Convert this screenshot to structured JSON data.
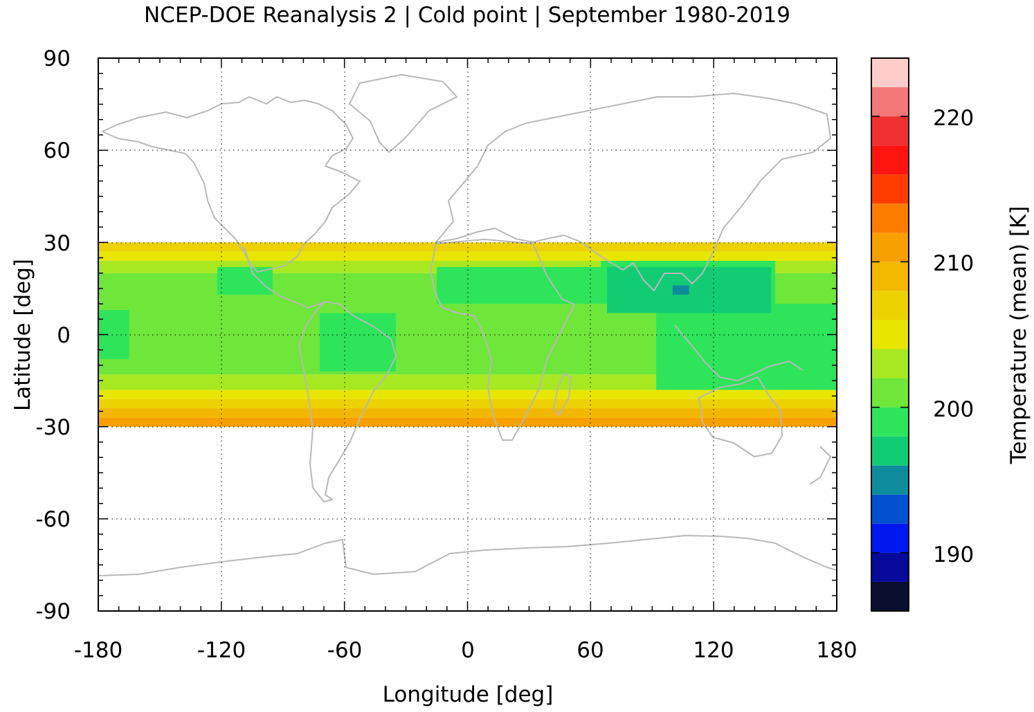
{
  "chart_data": {
    "type": "heatmap",
    "title": "NCEP-DOE Reanalysis 2 | Cold point | September 1980-2019",
    "xlabel": "Longitude [deg]",
    "ylabel": "Latitude [deg]",
    "colorbar_label": "Temperature (mean) [K]",
    "xlim": [
      -180,
      180
    ],
    "ylim": [
      -90,
      90
    ],
    "x_ticks": [
      -180,
      -120,
      -60,
      0,
      60,
      120,
      180
    ],
    "y_ticks": [
      -90,
      -60,
      -30,
      0,
      30,
      60,
      90
    ],
    "x_tick_labels": [
      "-180",
      "-120",
      "-60",
      "0",
      "60",
      "120",
      "180"
    ],
    "y_tick_labels": [
      "-90",
      "-60",
      "-30",
      "0",
      "30",
      "60",
      "90"
    ],
    "grid": true,
    "data_lat_range": [
      -30,
      30
    ],
    "colorbar": {
      "range": [
        186,
        224
      ],
      "tick_values": [
        190,
        200,
        210,
        220
      ],
      "tick_labels": [
        "190",
        "200",
        "210",
        "220"
      ],
      "step": 2,
      "colors": [
        "#0a0e2e",
        "#06099a",
        "#0018f0",
        "#0050d0",
        "#0e8c9e",
        "#12cc74",
        "#2ee45a",
        "#6ee63a",
        "#a8e820",
        "#e6e600",
        "#ecd200",
        "#f2b800",
        "#f8a000",
        "#fc7c00",
        "#ff3c00",
        "#ff1410",
        "#f03030",
        "#f47878",
        "#ffcccc"
      ]
    },
    "zones": [
      {
        "lat": [
          -30,
          -27
        ],
        "lon": [
          -180,
          180
        ],
        "value": 211
      },
      {
        "lat": [
          -27,
          -24
        ],
        "lon": [
          -180,
          180
        ],
        "value": 209
      },
      {
        "lat": [
          -24,
          -21
        ],
        "lon": [
          -180,
          180
        ],
        "value": 207
      },
      {
        "lat": [
          -21,
          -18
        ],
        "lon": [
          -180,
          180
        ],
        "value": 205
      },
      {
        "lat": [
          -18,
          -13
        ],
        "lon": [
          -180,
          180
        ],
        "value": 203
      },
      {
        "lat": [
          -13,
          20
        ],
        "lon": [
          -180,
          180
        ],
        "value": 201
      },
      {
        "lat": [
          20,
          24
        ],
        "lon": [
          -180,
          180
        ],
        "value": 203
      },
      {
        "lat": [
          24,
          27
        ],
        "lon": [
          -180,
          180
        ],
        "value": 205
      },
      {
        "lat": [
          27,
          30
        ],
        "lon": [
          -180,
          180
        ],
        "value": 207
      },
      {
        "lat": [
          -8,
          8
        ],
        "lon": [
          -180,
          -165
        ],
        "value": 199
      },
      {
        "lat": [
          13,
          22
        ],
        "lon": [
          -122,
          -95
        ],
        "value": 199
      },
      {
        "lat": [
          -12,
          7
        ],
        "lon": [
          -72,
          -35
        ],
        "value": 199
      },
      {
        "lat": [
          10,
          22
        ],
        "lon": [
          -15,
          65
        ],
        "value": 199
      },
      {
        "lat": [
          10,
          24
        ],
        "lon": [
          65,
          150
        ],
        "value": 199
      },
      {
        "lat": [
          -18,
          10
        ],
        "lon": [
          92,
          180
        ],
        "value": 199
      },
      {
        "lat": [
          7,
          22
        ],
        "lon": [
          68,
          148
        ],
        "value": 197
      },
      {
        "lat": [
          13,
          16
        ],
        "lon": [
          100,
          108
        ],
        "value": 195
      }
    ]
  }
}
